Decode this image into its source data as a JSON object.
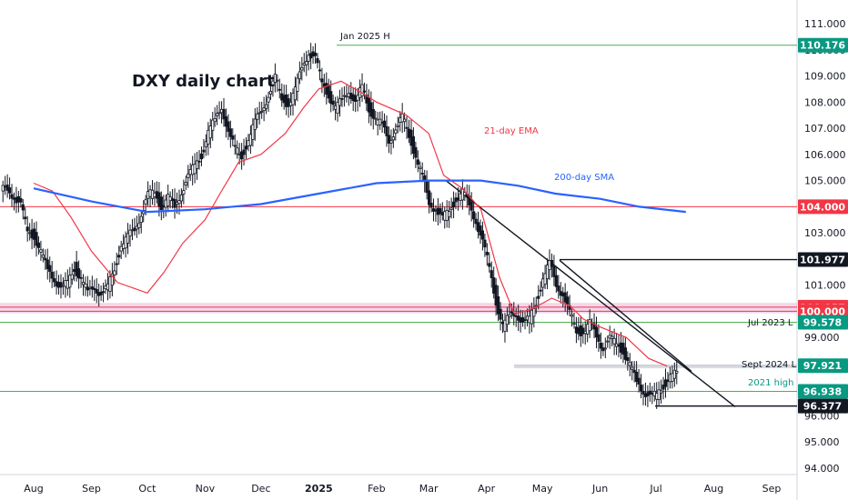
{
  "chart_data": {
    "type": "candlestick",
    "title": "DXY daily chart",
    "y_axis": {
      "ticks": [
        "111.000",
        "110.000",
        "109.000",
        "108.000",
        "107.000",
        "106.000",
        "105.000",
        "104.000",
        "103.000",
        "102.000",
        "101.000",
        "100.000",
        "99.000",
        "98.000",
        "97.000",
        "96.000",
        "95.000",
        "94.000"
      ],
      "range": [
        93.4,
        111.6
      ]
    },
    "x_axis": {
      "ticks": [
        {
          "label": "Aug",
          "day": 0
        },
        {
          "label": "Sep",
          "day": 31
        },
        {
          "label": "Oct",
          "day": 61
        },
        {
          "label": "Nov",
          "day": 92
        },
        {
          "label": "Dec",
          "day": 122
        },
        {
          "label": "2025",
          "day": 153,
          "bold": true
        },
        {
          "label": "Feb",
          "day": 184
        },
        {
          "label": "Mar",
          "day": 212
        },
        {
          "label": "Apr",
          "day": 243
        },
        {
          "label": "May",
          "day": 273
        },
        {
          "label": "Jun",
          "day": 304
        },
        {
          "label": "Jul",
          "day": 334
        },
        {
          "label": "Aug",
          "day": 365
        },
        {
          "label": "Sep",
          "day": 396
        }
      ]
    },
    "series": [
      {
        "name": "21-day EMA",
        "color": "#f23645",
        "points": [
          [
            0,
            104.9
          ],
          [
            10,
            104.6
          ],
          [
            20,
            103.6
          ],
          [
            31,
            102.3
          ],
          [
            45,
            101.1
          ],
          [
            61,
            100.7
          ],
          [
            70,
            101.5
          ],
          [
            80,
            102.6
          ],
          [
            92,
            103.5
          ],
          [
            100,
            104.5
          ],
          [
            110,
            105.7
          ],
          [
            122,
            106.0
          ],
          [
            135,
            106.8
          ],
          [
            145,
            107.8
          ],
          [
            153,
            108.5
          ],
          [
            165,
            108.8
          ],
          [
            175,
            108.4
          ],
          [
            184,
            108.0
          ],
          [
            200,
            107.5
          ],
          [
            212,
            106.8
          ],
          [
            220,
            105.2
          ],
          [
            230,
            104.7
          ],
          [
            240,
            103.9
          ],
          [
            250,
            101.3
          ],
          [
            258,
            99.9
          ],
          [
            268,
            100.1
          ],
          [
            278,
            100.5
          ],
          [
            288,
            100.2
          ],
          [
            295,
            99.7
          ],
          [
            304,
            99.4
          ],
          [
            318,
            99.0
          ],
          [
            330,
            98.2
          ],
          [
            340,
            97.9
          ]
        ]
      },
      {
        "name": "200-day SMA",
        "color": "#2962ff",
        "points": [
          [
            0,
            104.7
          ],
          [
            31,
            104.2
          ],
          [
            61,
            103.8
          ],
          [
            92,
            103.9
          ],
          [
            122,
            104.1
          ],
          [
            153,
            104.5
          ],
          [
            184,
            104.9
          ],
          [
            212,
            105.0
          ],
          [
            240,
            105.0
          ],
          [
            260,
            104.8
          ],
          [
            280,
            104.5
          ],
          [
            304,
            104.3
          ],
          [
            325,
            104.0
          ],
          [
            350,
            103.8
          ]
        ]
      }
    ],
    "candles_ohlc_path": [
      104.6,
      104.7,
      104.4,
      104.0,
      103.1,
      102.9,
      102.2,
      101.6,
      101.3,
      100.8,
      101.1,
      101.7,
      101.2,
      100.7,
      101.0,
      100.6,
      100.9,
      101.7,
      102.5,
      102.8,
      103.2,
      103.7,
      104.4,
      104.6,
      104.0,
      104.3,
      104.0,
      104.6,
      105.1,
      105.6,
      106.0,
      106.8,
      107.3,
      107.9,
      106.8,
      106.2,
      106.0,
      106.5,
      107.2,
      107.8,
      108.2,
      108.9,
      108.2,
      107.9,
      108.4,
      109.4,
      109.9,
      109.6,
      108.8,
      108.3,
      107.7,
      108.1,
      108.5,
      107.9,
      108.6,
      107.8,
      107.3,
      107.1,
      106.6,
      106.9,
      107.4,
      106.8,
      105.9,
      105.1,
      104.2,
      103.9,
      103.5,
      103.9,
      104.3,
      104.5,
      104.1,
      103.5,
      102.6,
      101.7,
      100.4,
      99.4,
      99.8,
      100.0,
      99.5,
      99.7,
      100.4,
      101.2,
      101.8,
      101.1,
      100.6,
      99.9,
      99.3,
      99.2,
      99.5,
      99.1,
      98.6,
      98.9,
      98.8,
      98.5,
      97.9,
      97.3,
      97.0,
      96.7,
      96.8,
      97.2,
      97.5,
      97.6
    ]
  },
  "levels": [
    {
      "value": 110.176,
      "label": "110.176",
      "color": "#089981",
      "line": "#4caf50",
      "dash": false
    },
    {
      "value": 104.0,
      "label": "104.000",
      "color": "#f23645",
      "line": "#f23645",
      "dash": false
    },
    {
      "value": 101.977,
      "label": "101.977",
      "color": "#131722",
      "line": "#131722",
      "dash": false
    },
    {
      "value": 100.157,
      "label": "100.157",
      "color": "#f23645",
      "line": "#f23645",
      "dash": false
    },
    {
      "value": 100.0,
      "label": "100.000",
      "color": "#f23645",
      "line": "#f23645",
      "dash": false
    },
    {
      "value": 99.578,
      "label": "99.578",
      "color": "#089981",
      "line": "#4caf50",
      "dash": false
    },
    {
      "value": 97.921,
      "label": "97.921",
      "color": "#089981",
      "line": "#9e9e9e",
      "dash": false
    },
    {
      "value": 96.938,
      "label": "96.938",
      "color": "#089981",
      "line": "#4caf50",
      "dash": false
    },
    {
      "value": 96.377,
      "label": "96.377",
      "color": "#131722",
      "line": "#131722",
      "dash": false
    }
  ],
  "annotations": {
    "jan_high": "Jan 2025 H",
    "ema_label": "21-day EMA",
    "sma_label": "200-day SMA",
    "jul2023": "Jul 2023 L",
    "sept2024": "Sept 2024 L",
    "high2021": "2021 high"
  },
  "colors": {
    "up": "#131722",
    "down": "#131722",
    "ema": "#f23645",
    "sma": "#2962ff",
    "zone": "#e9b6dd"
  }
}
